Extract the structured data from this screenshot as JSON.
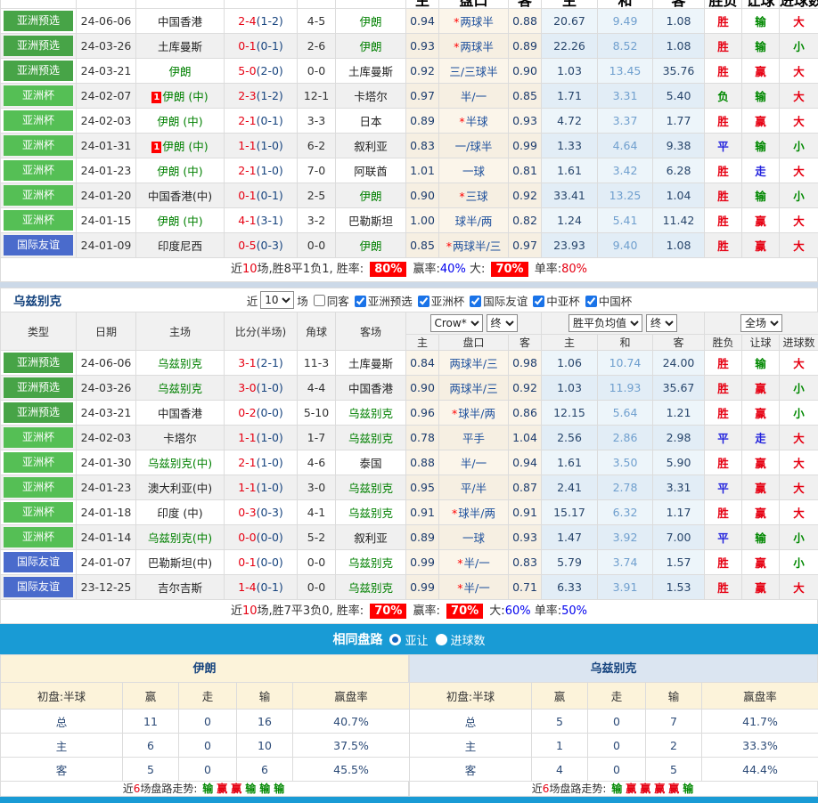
{
  "colors": {
    "type_pre": "#47a447",
    "type_cup": "#55bf55",
    "type_fri": "#4a6bcc",
    "team_highlight": "#008000",
    "score_ft": "#e60012",
    "score_ht": "#16437e",
    "banner_bg": "#199bd5",
    "char_colors": {
      "胜": "#e60012",
      "负": "#008800",
      "平": "#2222dd",
      "赢": "#e60012",
      "输": "#008800",
      "走": "#2222dd",
      "大": "#e60012",
      "小": "#008800"
    }
  },
  "columns_left": [
    "类型",
    "日期",
    "主场",
    "比分(半场)",
    "角球",
    "客场"
  ],
  "columns_sub": [
    "主",
    "盘口",
    "客",
    "主",
    "和",
    "客",
    "胜负",
    "让球",
    "进球数"
  ],
  "table1": {
    "rows": [
      {
        "type": "亚洲预选",
        "tc": "pre",
        "date": "24-06-06",
        "home": "中国香港",
        "hg": false,
        "rc": "",
        "score": "2-4",
        "half": "(1-2)",
        "corner": "4-5",
        "away": "伊朗",
        "ag": true,
        "oh": "0.94",
        "hstar": true,
        "hcp": "两球半",
        "oa": "0.88",
        "w1": "20.67",
        "wd": "9.49",
        "w2": "1.08",
        "res": "胜",
        "hres": "输",
        "goal": "大"
      },
      {
        "type": "亚洲预选",
        "tc": "pre",
        "date": "24-03-26",
        "home": "土库曼斯",
        "hg": false,
        "rc": "",
        "score": "0-1",
        "half": "(0-1)",
        "corner": "2-6",
        "away": "伊朗",
        "ag": true,
        "oh": "0.93",
        "hstar": true,
        "hcp": "两球半",
        "oa": "0.89",
        "w1": "22.26",
        "wd": "8.52",
        "w2": "1.08",
        "res": "胜",
        "hres": "输",
        "goal": "小"
      },
      {
        "type": "亚洲预选",
        "tc": "pre",
        "date": "24-03-21",
        "home": "伊朗",
        "hg": true,
        "rc": "",
        "score": "5-0",
        "half": "(2-0)",
        "corner": "0-0",
        "away": "土库曼斯",
        "ag": false,
        "oh": "0.92",
        "hstar": false,
        "hcp": "三/三球半",
        "oa": "0.90",
        "w1": "1.03",
        "wd": "13.45",
        "w2": "35.76",
        "res": "胜",
        "hres": "赢",
        "goal": "大"
      },
      {
        "type": "亚洲杯",
        "tc": "cup",
        "date": "24-02-07",
        "home": "伊朗 (中)",
        "hg": true,
        "rc": "1",
        "score": "2-3",
        "half": "(1-2)",
        "corner": "12-1",
        "away": "卡塔尔",
        "ag": false,
        "oh": "0.97",
        "hstar": false,
        "hcp": "半/一",
        "oa": "0.85",
        "w1": "1.71",
        "wd": "3.31",
        "w2": "5.40",
        "res": "负",
        "hres": "输",
        "goal": "大"
      },
      {
        "type": "亚洲杯",
        "tc": "cup",
        "date": "24-02-03",
        "home": "伊朗 (中)",
        "hg": true,
        "rc": "",
        "score": "2-1",
        "half": "(0-1)",
        "corner": "3-3",
        "away": "日本",
        "ag": false,
        "oh": "0.89",
        "hstar": true,
        "hcp": "半球",
        "oa": "0.93",
        "w1": "4.72",
        "wd": "3.37",
        "w2": "1.77",
        "res": "胜",
        "hres": "赢",
        "goal": "大"
      },
      {
        "type": "亚洲杯",
        "tc": "cup",
        "date": "24-01-31",
        "home": "伊朗 (中)",
        "hg": true,
        "rc": "1",
        "score": "1-1",
        "half": "(1-0)",
        "corner": "6-2",
        "away": "叙利亚",
        "ag": false,
        "oh": "0.83",
        "hstar": false,
        "hcp": "一/球半",
        "oa": "0.99",
        "w1": "1.33",
        "wd": "4.64",
        "w2": "9.38",
        "res": "平",
        "hres": "输",
        "goal": "小"
      },
      {
        "type": "亚洲杯",
        "tc": "cup",
        "date": "24-01-23",
        "home": "伊朗 (中)",
        "hg": true,
        "rc": "",
        "score": "2-1",
        "half": "(1-0)",
        "corner": "7-0",
        "away": "阿联酋",
        "ag": false,
        "oh": "1.01",
        "hstar": false,
        "hcp": "一球",
        "oa": "0.81",
        "w1": "1.61",
        "wd": "3.42",
        "w2": "6.28",
        "res": "胜",
        "hres": "走",
        "goal": "大"
      },
      {
        "type": "亚洲杯",
        "tc": "cup",
        "date": "24-01-20",
        "home": "中国香港(中)",
        "hg": false,
        "rc": "",
        "score": "0-1",
        "half": "(0-1)",
        "corner": "2-5",
        "away": "伊朗",
        "ag": true,
        "oh": "0.90",
        "hstar": true,
        "hcp": "三球",
        "oa": "0.92",
        "w1": "33.41",
        "wd": "13.25",
        "w2": "1.04",
        "res": "胜",
        "hres": "输",
        "goal": "小"
      },
      {
        "type": "亚洲杯",
        "tc": "cup",
        "date": "24-01-15",
        "home": "伊朗 (中)",
        "hg": true,
        "rc": "",
        "score": "4-1",
        "half": "(3-1)",
        "corner": "3-2",
        "away": "巴勒斯坦",
        "ag": false,
        "oh": "1.00",
        "hstar": false,
        "hcp": "球半/两",
        "oa": "0.82",
        "w1": "1.24",
        "wd": "5.41",
        "w2": "11.42",
        "res": "胜",
        "hres": "赢",
        "goal": "大"
      },
      {
        "type": "国际友谊",
        "tc": "fri",
        "date": "24-01-09",
        "home": "印度尼西",
        "hg": false,
        "rc": "",
        "score": "0-5",
        "half": "(0-3)",
        "corner": "0-0",
        "away": "伊朗",
        "ag": true,
        "oh": "0.85",
        "hstar": true,
        "hcp": "两球半/三",
        "oa": "0.97",
        "w1": "23.93",
        "wd": "9.40",
        "w2": "1.08",
        "res": "胜",
        "hres": "赢",
        "goal": "大"
      }
    ],
    "summary": [
      {
        "t": "近",
        "c": "k"
      },
      {
        "t": "10",
        "c": "r"
      },
      {
        "t": "场,胜8平1负1, 胜率: ",
        "c": "k"
      },
      {
        "t": "80%",
        "c": "box"
      },
      {
        "t": " 赢率:",
        "c": "k"
      },
      {
        "t": "40%",
        "c": "b"
      },
      {
        "t": " 大: ",
        "c": "k"
      },
      {
        "t": "70%",
        "c": "box"
      },
      {
        "t": " 单率:",
        "c": "k"
      },
      {
        "t": "80%",
        "c": "r"
      }
    ]
  },
  "section2": {
    "title": "乌兹别克",
    "filter": {
      "near_label": "近",
      "count": "10",
      "games_label": "场",
      "same_away_label": "同客",
      "same_away_checked": false,
      "leagues": [
        "亚洲预选",
        "亚洲杯",
        "国际友谊",
        "中亚杯",
        "中国杯"
      ]
    },
    "selects": {
      "odds_source": "Crow*",
      "odds_time": "终",
      "avg": "胜平负均值",
      "avg_time": "终",
      "scope": "全场"
    }
  },
  "table2": {
    "rows": [
      {
        "type": "亚洲预选",
        "tc": "pre",
        "date": "24-06-06",
        "home": "乌兹别克",
        "hg": true,
        "rc": "",
        "score": "3-1",
        "half": "(2-1)",
        "corner": "11-3",
        "away": "土库曼斯",
        "ag": false,
        "oh": "0.84",
        "hstar": false,
        "hcp": "两球半/三",
        "oa": "0.98",
        "w1": "1.06",
        "wd": "10.74",
        "w2": "24.00",
        "res": "胜",
        "hres": "输",
        "goal": "大"
      },
      {
        "type": "亚洲预选",
        "tc": "pre",
        "date": "24-03-26",
        "home": "乌兹别克",
        "hg": true,
        "rc": "",
        "score": "3-0",
        "half": "(1-0)",
        "corner": "4-4",
        "away": "中国香港",
        "ag": false,
        "oh": "0.90",
        "hstar": false,
        "hcp": "两球半/三",
        "oa": "0.92",
        "w1": "1.03",
        "wd": "11.93",
        "w2": "35.67",
        "res": "胜",
        "hres": "赢",
        "goal": "小"
      },
      {
        "type": "亚洲预选",
        "tc": "pre",
        "date": "24-03-21",
        "home": "中国香港",
        "hg": false,
        "rc": "",
        "score": "0-2",
        "half": "(0-0)",
        "corner": "5-10",
        "away": "乌兹别克",
        "ag": true,
        "oh": "0.96",
        "hstar": true,
        "hcp": "球半/两",
        "oa": "0.86",
        "w1": "12.15",
        "wd": "5.64",
        "w2": "1.21",
        "res": "胜",
        "hres": "赢",
        "goal": "小"
      },
      {
        "type": "亚洲杯",
        "tc": "cup",
        "date": "24-02-03",
        "home": "卡塔尔",
        "hg": false,
        "rc": "",
        "score": "1-1",
        "half": "(1-0)",
        "corner": "1-7",
        "away": "乌兹别克",
        "ag": true,
        "oh": "0.78",
        "hstar": false,
        "hcp": "平手",
        "oa": "1.04",
        "w1": "2.56",
        "wd": "2.86",
        "w2": "2.98",
        "res": "平",
        "hres": "走",
        "goal": "大"
      },
      {
        "type": "亚洲杯",
        "tc": "cup",
        "date": "24-01-30",
        "home": "乌兹别克(中)",
        "hg": true,
        "rc": "",
        "score": "2-1",
        "half": "(1-0)",
        "corner": "4-6",
        "away": "泰国",
        "ag": false,
        "oh": "0.88",
        "hstar": false,
        "hcp": "半/一",
        "oa": "0.94",
        "w1": "1.61",
        "wd": "3.50",
        "w2": "5.90",
        "res": "胜",
        "hres": "赢",
        "goal": "大"
      },
      {
        "type": "亚洲杯",
        "tc": "cup",
        "date": "24-01-23",
        "home": "澳大利亚(中)",
        "hg": false,
        "rc": "",
        "score": "1-1",
        "half": "(1-0)",
        "corner": "3-0",
        "away": "乌兹别克",
        "ag": true,
        "oh": "0.95",
        "hstar": false,
        "hcp": "平/半",
        "oa": "0.87",
        "w1": "2.41",
        "wd": "2.78",
        "w2": "3.31",
        "res": "平",
        "hres": "赢",
        "goal": "大"
      },
      {
        "type": "亚洲杯",
        "tc": "cup",
        "date": "24-01-18",
        "home": "印度 (中)",
        "hg": false,
        "rc": "",
        "score": "0-3",
        "half": "(0-3)",
        "corner": "4-1",
        "away": "乌兹别克",
        "ag": true,
        "oh": "0.91",
        "hstar": true,
        "hcp": "球半/两",
        "oa": "0.91",
        "w1": "15.17",
        "wd": "6.32",
        "w2": "1.17",
        "res": "胜",
        "hres": "赢",
        "goal": "大"
      },
      {
        "type": "亚洲杯",
        "tc": "cup",
        "date": "24-01-14",
        "home": "乌兹别克(中)",
        "hg": true,
        "rc": "",
        "score": "0-0",
        "half": "(0-0)",
        "corner": "5-2",
        "away": "叙利亚",
        "ag": false,
        "oh": "0.89",
        "hstar": false,
        "hcp": "一球",
        "oa": "0.93",
        "w1": "1.47",
        "wd": "3.92",
        "w2": "7.00",
        "res": "平",
        "hres": "输",
        "goal": "小"
      },
      {
        "type": "国际友谊",
        "tc": "fri",
        "date": "24-01-07",
        "home": "巴勒斯坦(中)",
        "hg": false,
        "rc": "",
        "score": "0-1",
        "half": "(0-0)",
        "corner": "0-0",
        "away": "乌兹别克",
        "ag": true,
        "oh": "0.99",
        "hstar": true,
        "hcp": "半/一",
        "oa": "0.83",
        "w1": "5.79",
        "wd": "3.74",
        "w2": "1.57",
        "res": "胜",
        "hres": "赢",
        "goal": "小"
      },
      {
        "type": "国际友谊",
        "tc": "fri",
        "date": "23-12-25",
        "home": "吉尔吉斯",
        "hg": false,
        "rc": "",
        "score": "1-4",
        "half": "(0-1)",
        "corner": "0-0",
        "away": "乌兹别克",
        "ag": true,
        "oh": "0.99",
        "hstar": true,
        "hcp": "半/一",
        "oa": "0.71",
        "w1": "6.33",
        "wd": "3.91",
        "w2": "1.53",
        "res": "胜",
        "hres": "赢",
        "goal": "大"
      }
    ],
    "summary": [
      {
        "t": "近",
        "c": "k"
      },
      {
        "t": "10",
        "c": "r"
      },
      {
        "t": "场,胜7平3负0, 胜率: ",
        "c": "k"
      },
      {
        "t": "70%",
        "c": "box"
      },
      {
        "t": " 赢率: ",
        "c": "k"
      },
      {
        "t": "70%",
        "c": "box"
      },
      {
        "t": " 大:",
        "c": "k"
      },
      {
        "t": "60%",
        "c": "b"
      },
      {
        "t": " 单率:",
        "c": "k"
      },
      {
        "t": "50%",
        "c": "b"
      }
    ]
  },
  "banner": {
    "title": "相同盘路",
    "options": [
      "亚让",
      "进球数"
    ],
    "selected": "亚让"
  },
  "compare": {
    "columns": [
      "赢",
      "走",
      "输",
      "赢盘率"
    ],
    "trend_label_parts": [
      {
        "t": "近",
        "c": "k"
      },
      {
        "t": "6",
        "c": "r"
      },
      {
        "t": "场盘路走势: ",
        "c": "k"
      }
    ],
    "left": {
      "team": "伊朗",
      "opening_label": "初盘:半球",
      "rows": [
        {
          "label": "总",
          "win": "11",
          "push": "0",
          "loss": "16",
          "rate": "40.7%"
        },
        {
          "label": "主",
          "win": "6",
          "push": "0",
          "loss": "10",
          "rate": "37.5%"
        },
        {
          "label": "客",
          "win": "5",
          "push": "0",
          "loss": "6",
          "rate": "45.5%"
        }
      ],
      "trend": [
        "输",
        "赢",
        "赢",
        "输",
        "输",
        "输"
      ]
    },
    "right": {
      "team": "乌兹别克",
      "opening_label": "初盘:半球",
      "rows": [
        {
          "label": "总",
          "win": "5",
          "push": "0",
          "loss": "7",
          "rate": "41.7%"
        },
        {
          "label": "主",
          "win": "1",
          "push": "0",
          "loss": "2",
          "rate": "33.3%"
        },
        {
          "label": "客",
          "win": "4",
          "push": "0",
          "loss": "5",
          "rate": "44.4%"
        }
      ],
      "trend": [
        "输",
        "赢",
        "赢",
        "赢",
        "赢",
        "输"
      ]
    }
  }
}
